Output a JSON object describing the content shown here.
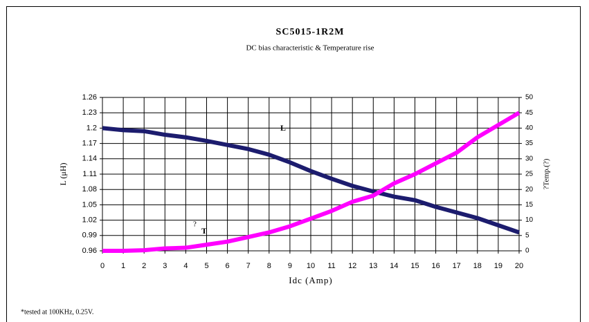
{
  "chart_data": {
    "type": "line",
    "title": "SC5015-1R2M",
    "subtitle": "DC bias characteristic & Temperature rise",
    "xlabel": "Idc (Amp)",
    "ylabel": "L (μH)",
    "y2label": "?Temp.(?)",
    "footnote": "*tested at 100KHz, 0.25V.",
    "annotations": [
      "L",
      "?",
      "T"
    ],
    "x": [
      0,
      1,
      2,
      3,
      4,
      5,
      6,
      7,
      8,
      9,
      10,
      11,
      12,
      13,
      14,
      15,
      16,
      17,
      18,
      19,
      20
    ],
    "xlim": [
      0,
      20
    ],
    "xticks": [
      0,
      1,
      2,
      3,
      4,
      5,
      6,
      7,
      8,
      9,
      10,
      11,
      12,
      13,
      14,
      15,
      16,
      17,
      18,
      19,
      20
    ],
    "ylim": [
      0.96,
      1.26
    ],
    "yticks": [
      0.96,
      0.99,
      1.02,
      1.05,
      1.08,
      1.11,
      1.14,
      1.17,
      1.2,
      1.23,
      1.26
    ],
    "y2lim": [
      0,
      50
    ],
    "y2ticks": [
      0,
      5,
      10,
      15,
      20,
      25,
      30,
      35,
      40,
      45,
      50
    ],
    "grid": true,
    "series": [
      {
        "name": "L",
        "color": "#1c1c6e",
        "values": [
          1.2,
          1.196,
          1.194,
          1.187,
          1.182,
          1.175,
          1.167,
          1.159,
          1.148,
          1.133,
          1.116,
          1.101,
          1.087,
          1.076,
          1.066,
          1.059,
          1.046,
          1.035,
          1.024,
          1.01,
          0.996
        ]
      },
      {
        "name": "T",
        "color": "#ff00ff",
        "axis": "y2",
        "values": [
          0,
          0,
          0.2,
          0.8,
          1,
          2,
          3,
          4.5,
          6,
          8,
          10.5,
          13,
          16,
          18,
          22,
          25,
          28.5,
          32,
          37,
          41,
          45
        ]
      }
    ]
  }
}
